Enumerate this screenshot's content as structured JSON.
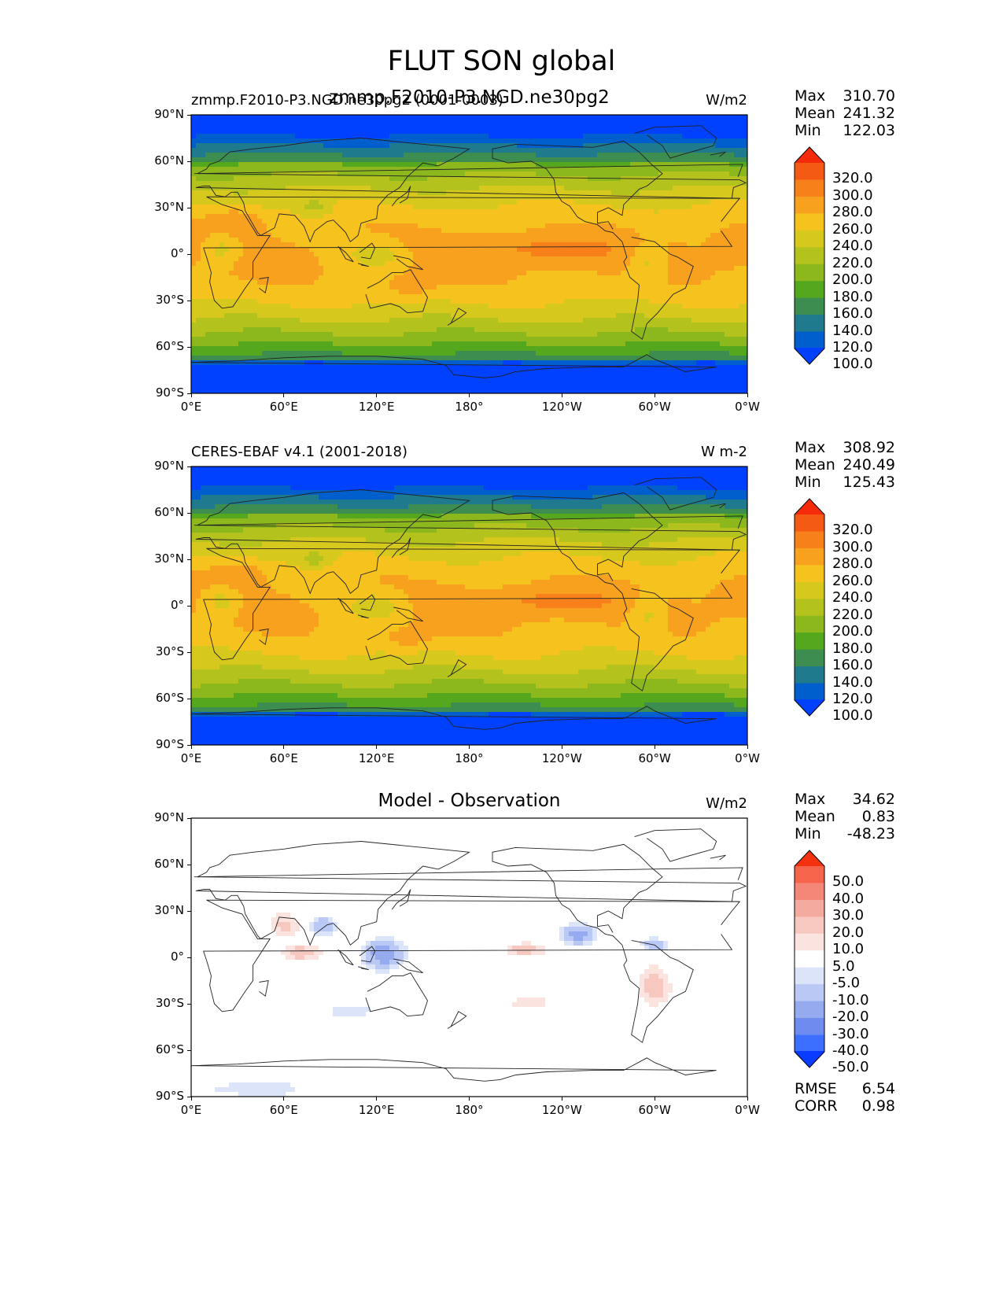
{
  "figure_title": "FLUT SON global",
  "chart_data": [
    {
      "type": "heatmap",
      "panel": "test",
      "left_title": "zmmp.F2010-P3.NGD.ne30pg2 (0001-0003)",
      "center_title": "zmmp.F2010-P3.NGD.ne30pg2",
      "units": "W/m2",
      "stats": [
        {
          "label": "Max",
          "value": "310.70"
        },
        {
          "label": "Mean",
          "value": "241.32"
        },
        {
          "label": "Min",
          "value": "122.03"
        }
      ],
      "colorbar_levels": [
        "320.0",
        "300.0",
        "280.0",
        "260.0",
        "240.0",
        "220.0",
        "200.0",
        "180.0",
        "160.0",
        "140.0",
        "120.0",
        "100.0"
      ],
      "xticks": [
        "0°E",
        "60°E",
        "120°E",
        "180°",
        "120°W",
        "60°W",
        "0°W"
      ],
      "yticks": [
        "90°N",
        "60°N",
        "30°N",
        "0°",
        "30°S",
        "60°S",
        "90°S"
      ]
    },
    {
      "type": "heatmap",
      "panel": "reference",
      "left_title": "CERES-EBAF v4.1 (2001-2018)",
      "center_title": "",
      "units": "W m-2",
      "stats": [
        {
          "label": "Max",
          "value": "308.92"
        },
        {
          "label": "Mean",
          "value": "240.49"
        },
        {
          "label": "Min",
          "value": "125.43"
        }
      ],
      "colorbar_levels": [
        "320.0",
        "300.0",
        "280.0",
        "260.0",
        "240.0",
        "220.0",
        "200.0",
        "180.0",
        "160.0",
        "140.0",
        "120.0",
        "100.0"
      ],
      "xticks": [
        "0°E",
        "60°E",
        "120°E",
        "180°",
        "120°W",
        "60°W",
        "0°W"
      ],
      "yticks": [
        "90°N",
        "60°N",
        "30°N",
        "0°",
        "30°S",
        "60°S",
        "90°S"
      ]
    },
    {
      "type": "heatmap",
      "panel": "difference",
      "left_title": "",
      "center_title": "Model - Observation",
      "units": "W/m2",
      "stats": [
        {
          "label": "Max",
          "value": "34.62"
        },
        {
          "label": "Mean",
          "value": "0.83"
        },
        {
          "label": "Min",
          "value": "-48.23"
        }
      ],
      "extra_stats": [
        {
          "label": "RMSE",
          "value": "6.54"
        },
        {
          "label": "CORR",
          "value": "0.98"
        }
      ],
      "colorbar_levels": [
        "50.0",
        "40.0",
        "30.0",
        "20.0",
        "10.0",
        "5.0",
        "-5.0",
        "-10.0",
        "-20.0",
        "-30.0",
        "-40.0",
        "-50.0"
      ],
      "xticks": [
        "0°E",
        "60°E",
        "120°E",
        "180°",
        "120°W",
        "60°W",
        "0°W"
      ],
      "yticks": [
        "90°N",
        "60°N",
        "30°N",
        "0°",
        "30°S",
        "60°S",
        "90°S"
      ]
    }
  ],
  "colors": {
    "seq": [
      "#0040ff",
      "#005fcc",
      "#1e7a8c",
      "#3d8c50",
      "#55a81e",
      "#8cb81e",
      "#b4c21e",
      "#d7c81e",
      "#f5c21e",
      "#f7a11e",
      "#f7801a",
      "#f55a14",
      "#f52a0a"
    ],
    "div": [
      "#0a3cff",
      "#3c6eff",
      "#6e8cf0",
      "#96aaf0",
      "#b9c8f5",
      "#dce4fa",
      "#ffffff",
      "#fbe4e0",
      "#f7c8c0",
      "#f5aaa0",
      "#f58778",
      "#f5644b",
      "#f5320f"
    ]
  }
}
